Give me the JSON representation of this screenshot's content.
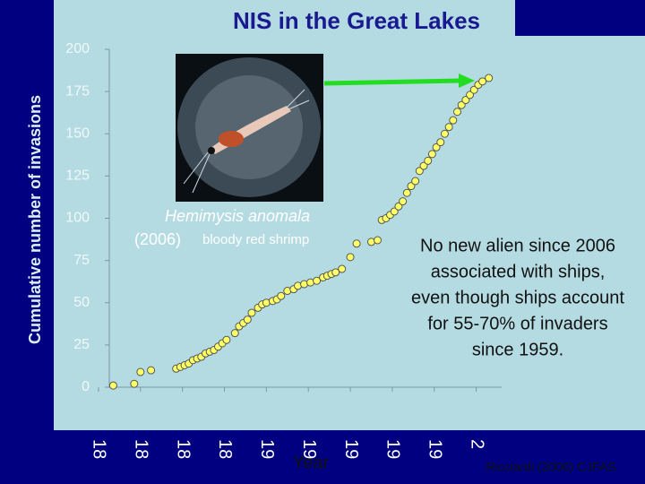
{
  "chart_data": {
    "type": "scatter",
    "title": "NIS in the Great Lakes",
    "y_label": "Cumulative number of invasions",
    "x_label": "Year",
    "xlim": [
      1820,
      2010
    ],
    "ylim": [
      0,
      200
    ],
    "yticks": [
      0,
      25,
      50,
      75,
      100,
      125,
      150,
      175,
      200
    ],
    "xticks": [
      {
        "value": 1820,
        "label": "18"
      },
      {
        "value": 1840,
        "label": "18"
      },
      {
        "value": 1860,
        "label": "18"
      },
      {
        "value": 1880,
        "label": "18"
      },
      {
        "value": 1900,
        "label": "19"
      },
      {
        "value": 1920,
        "label": "19"
      },
      {
        "value": 1940,
        "label": "19"
      },
      {
        "value": 1960,
        "label": "19"
      },
      {
        "value": 1980,
        "label": "19"
      },
      {
        "value": 2000,
        "label": "2"
      }
    ],
    "color": "#ffff66",
    "x": [
      1827,
      1837,
      1840,
      1845,
      1857,
      1859,
      1861,
      1863,
      1865,
      1867,
      1869,
      1871,
      1873,
      1875,
      1877,
      1879,
      1881,
      1885,
      1887,
      1889,
      1891,
      1893,
      1896,
      1898,
      1900,
      1903,
      1905,
      1907,
      1910,
      1913,
      1915,
      1918,
      1921,
      1924,
      1927,
      1929,
      1931,
      1933,
      1936,
      1940,
      1943,
      1950,
      1953,
      1955,
      1957,
      1959,
      1961,
      1963,
      1965,
      1967,
      1969,
      1971,
      1973,
      1975,
      1977,
      1979,
      1981,
      1983,
      1985,
      1987,
      1989,
      1991,
      1993,
      1995,
      1997,
      1999,
      2001,
      2003,
      2006
    ],
    "values": [
      1,
      2,
      9,
      10,
      11,
      12,
      13,
      14,
      16,
      17,
      18,
      20,
      21,
      22,
      24,
      26,
      28,
      32,
      36,
      38,
      40,
      44,
      47,
      49,
      50,
      51,
      52,
      54,
      57,
      58,
      60,
      61,
      62,
      63,
      65,
      66,
      67,
      68,
      70,
      77,
      85,
      86,
      87,
      99,
      100,
      102,
      104,
      107,
      110,
      115,
      119,
      122,
      128,
      131,
      134,
      138,
      142,
      145,
      150,
      154,
      158,
      163,
      167,
      170,
      173,
      176,
      179,
      181,
      183
    ],
    "photo_caption": {
      "species": "Hemimysis anomala",
      "year": "(2006)",
      "common_name": "bloody red shrimp"
    },
    "annotation": [
      "No new alien since 2006",
      "associated with ships,",
      "even though ships account",
      "for 55-70% of invaders",
      "since 1959."
    ],
    "source": "Ricciardi (2006) CJFAS"
  }
}
